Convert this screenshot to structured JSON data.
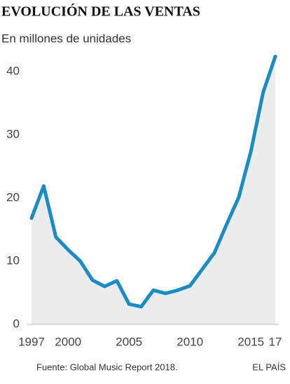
{
  "chart_data": {
    "type": "line",
    "title": "EVOLUCIÓN DE LAS VENTAS",
    "subtitle": "En millones de unidades",
    "source": "Fuente: Global Music Report 2018.",
    "publisher": "EL PAÍS",
    "x": [
      1997,
      1998,
      1999,
      2000,
      2001,
      2002,
      2003,
      2004,
      2005,
      2006,
      2007,
      2008,
      2009,
      2010,
      2011,
      2012,
      2013,
      2014,
      2015,
      2016,
      2017
    ],
    "series": [
      {
        "name": "Ventas",
        "color": "#1a8bc3",
        "values": [
          16.8,
          21.9,
          13.8,
          11.8,
          10.0,
          7.0,
          6.0,
          6.9,
          3.2,
          2.8,
          5.4,
          4.9,
          5.4,
          6.1,
          8.7,
          11.3,
          15.8,
          20.1,
          27.4,
          36.7,
          42.4
        ]
      }
    ],
    "area_color": "#ececec",
    "xlim": [
      1997,
      2017
    ],
    "xticks": [
      1997,
      2000,
      2005,
      2010,
      2015,
      {
        "value": 2017,
        "label": "17"
      }
    ],
    "ylim": [
      0,
      43
    ],
    "yticks": [
      0,
      10,
      20,
      30,
      40
    ]
  }
}
